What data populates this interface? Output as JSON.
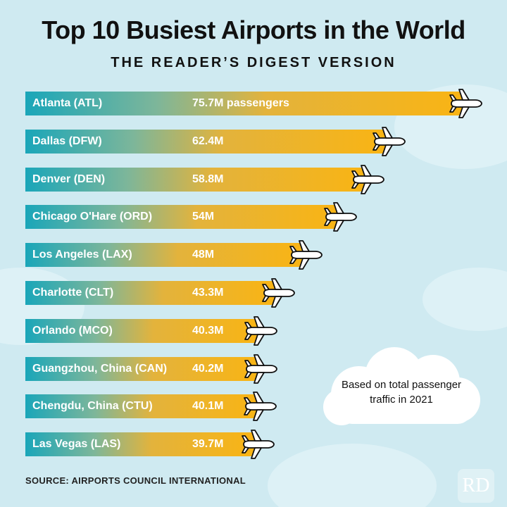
{
  "title": "Top 10 Busiest Airports in the World",
  "subtitle": "THE READER’S DIGEST VERSION",
  "note": "Based on total passenger traffic in 2021",
  "source": "SOURCE: AIRPORTS COUNCIL INTERNATIONAL",
  "logo": "RD",
  "colors": {
    "start": "#1aa6b9",
    "end": "#f9b414",
    "background": "#cfeaf1"
  },
  "chart_data": {
    "type": "bar",
    "orientation": "horizontal",
    "title": "Top 10 Busiest Airports in the World",
    "unit": "million passengers",
    "categories": [
      "Atlanta (ATL)",
      "Dallas (DFW)",
      "Denver (DEN)",
      "Chicago O'Hare (ORD)",
      "Los Angeles (LAX)",
      "Charlotte (CLT)",
      "Orlando (MCO)",
      "Guangzhou, China (CAN)",
      "Chengdu, China (CTU)",
      "Las Vegas (LAS)"
    ],
    "values": [
      75.7,
      62.4,
      58.8,
      54,
      48,
      43.3,
      40.3,
      40.2,
      40.1,
      39.7
    ],
    "value_labels": [
      "75.7M passengers",
      "62.4M",
      "58.8M",
      "54M",
      "48M",
      "43.3M",
      "40.3M",
      "40.2M",
      "40.1M",
      "39.7M"
    ]
  }
}
